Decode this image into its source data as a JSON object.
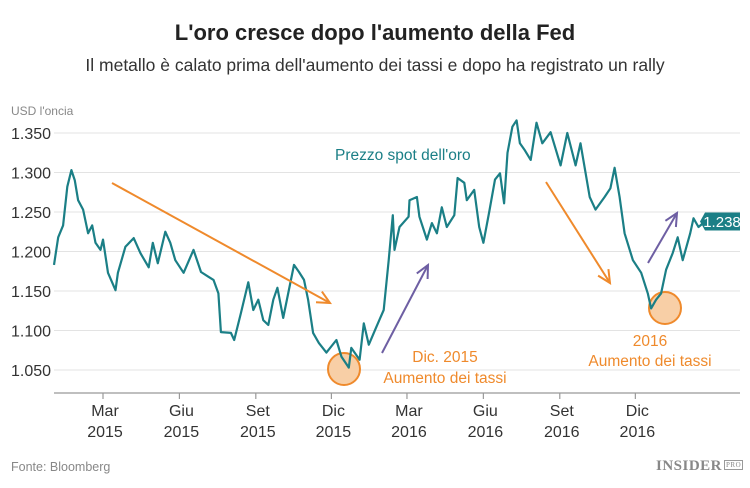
{
  "header": {
    "title": "L'oro cresce dopo l'aumento della Fed",
    "subtitle": "Il metallo è calato prima dell'aumento dei tassi e dopo ha registrato un rally"
  },
  "footer": {
    "source": "Fonte: Bloomberg",
    "logo": "INSIDER",
    "logo_suffix": "PRO"
  },
  "colors": {
    "line": "#1b7f86",
    "orange": "#ef8a2c",
    "purple": "#6e5fa3",
    "circle_fill": "#f8cfa6",
    "grid": "#e3e3e3"
  },
  "chart_data": {
    "type": "line",
    "title": "L'oro cresce dopo l'aumento della Fed",
    "ylabel": "USD l'oncia",
    "ylim": [
      1.021,
      1.365
    ],
    "xlim": [
      "2015-01-01",
      "2017-04-06"
    ],
    "grid": true,
    "yticks": [
      1.35,
      1.3,
      1.25,
      1.2,
      1.15,
      1.1,
      1.05
    ],
    "ytick_labels": [
      "1.350",
      "1.300",
      "1.250",
      "1.200",
      "1.150",
      "1.100",
      "1.050"
    ],
    "xticks": [
      {
        "date": "2015-03-01",
        "label": [
          "Mar",
          "2015"
        ]
      },
      {
        "date": "2015-06-01",
        "label": [
          "Giu",
          "2015"
        ]
      },
      {
        "date": "2015-09-01",
        "label": [
          "Set",
          "2015"
        ]
      },
      {
        "date": "2015-12-01",
        "label": [
          "Dic",
          "2015"
        ]
      },
      {
        "date": "2016-03-01",
        "label": [
          "Mar",
          "2016"
        ]
      },
      {
        "date": "2016-06-01",
        "label": [
          "Giu",
          "2016"
        ]
      },
      {
        "date": "2016-09-01",
        "label": [
          "Set",
          "2016"
        ]
      },
      {
        "date": "2016-12-01",
        "label": [
          "Dic",
          "2016"
        ]
      }
    ],
    "series": [
      {
        "name": "Prezzo spot dell'oro",
        "last_label": "1.238",
        "points": [
          [
            "2015-01-01",
            1.183
          ],
          [
            "2015-01-06",
            1.218
          ],
          [
            "2015-01-12",
            1.233
          ],
          [
            "2015-01-17",
            1.282
          ],
          [
            "2015-01-22",
            1.303
          ],
          [
            "2015-01-26",
            1.29
          ],
          [
            "2015-01-30",
            1.265
          ],
          [
            "2015-02-05",
            1.253
          ],
          [
            "2015-02-11",
            1.223
          ],
          [
            "2015-02-16",
            1.233
          ],
          [
            "2015-02-20",
            1.211
          ],
          [
            "2015-02-26",
            1.202
          ],
          [
            "2015-03-01",
            1.215
          ],
          [
            "2015-03-07",
            1.173
          ],
          [
            "2015-03-16",
            1.151
          ],
          [
            "2015-03-19",
            1.173
          ],
          [
            "2015-03-28",
            1.206
          ],
          [
            "2015-04-07",
            1.217
          ],
          [
            "2015-04-15",
            1.198
          ],
          [
            "2015-04-25",
            1.18
          ],
          [
            "2015-04-30",
            1.211
          ],
          [
            "2015-05-06",
            1.185
          ],
          [
            "2015-05-15",
            1.225
          ],
          [
            "2015-05-21",
            1.211
          ],
          [
            "2015-05-27",
            1.189
          ],
          [
            "2015-06-06",
            1.173
          ],
          [
            "2015-06-18",
            1.202
          ],
          [
            "2015-06-27",
            1.174
          ],
          [
            "2015-07-06",
            1.168
          ],
          [
            "2015-07-12",
            1.164
          ],
          [
            "2015-07-18",
            1.147
          ],
          [
            "2015-07-21",
            1.098
          ],
          [
            "2015-08-02",
            1.097
          ],
          [
            "2015-08-06",
            1.088
          ],
          [
            "2015-08-14",
            1.122
          ],
          [
            "2015-08-23",
            1.161
          ],
          [
            "2015-08-29",
            1.126
          ],
          [
            "2015-09-04",
            1.139
          ],
          [
            "2015-09-10",
            1.113
          ],
          [
            "2015-09-16",
            1.107
          ],
          [
            "2015-09-22",
            1.139
          ],
          [
            "2015-09-27",
            1.154
          ],
          [
            "2015-10-04",
            1.116
          ],
          [
            "2015-10-10",
            1.147
          ],
          [
            "2015-10-17",
            1.183
          ],
          [
            "2015-10-23",
            1.174
          ],
          [
            "2015-10-29",
            1.164
          ],
          [
            "2015-11-03",
            1.139
          ],
          [
            "2015-11-09",
            1.097
          ],
          [
            "2015-11-16",
            1.084
          ],
          [
            "2015-11-25",
            1.072
          ],
          [
            "2015-12-07",
            1.088
          ],
          [
            "2015-12-13",
            1.067
          ],
          [
            "2015-12-22",
            1.053
          ],
          [
            "2015-12-25",
            1.078
          ],
          [
            "2016-01-04",
            1.063
          ],
          [
            "2016-01-09",
            1.109
          ],
          [
            "2016-01-15",
            1.082
          ],
          [
            "2016-01-24",
            1.104
          ],
          [
            "2016-02-02",
            1.126
          ],
          [
            "2016-02-08",
            1.189
          ],
          [
            "2016-02-13",
            1.246
          ],
          [
            "2016-02-15",
            1.202
          ],
          [
            "2016-02-21",
            1.231
          ],
          [
            "2016-03-03",
            1.244
          ],
          [
            "2016-03-04",
            1.265
          ],
          [
            "2016-03-13",
            1.269
          ],
          [
            "2016-03-16",
            1.244
          ],
          [
            "2016-03-25",
            1.215
          ],
          [
            "2016-03-31",
            1.236
          ],
          [
            "2016-04-06",
            1.223
          ],
          [
            "2016-04-12",
            1.256
          ],
          [
            "2016-04-18",
            1.231
          ],
          [
            "2016-04-27",
            1.246
          ],
          [
            "2016-05-01",
            1.293
          ],
          [
            "2016-05-09",
            1.287
          ],
          [
            "2016-05-12",
            1.265
          ],
          [
            "2016-05-21",
            1.278
          ],
          [
            "2016-05-27",
            1.231
          ],
          [
            "2016-06-01",
            1.211
          ],
          [
            "2016-06-08",
            1.25
          ],
          [
            "2016-06-15",
            1.291
          ],
          [
            "2016-06-21",
            1.299
          ],
          [
            "2016-06-26",
            1.261
          ],
          [
            "2016-06-30",
            1.325
          ],
          [
            "2016-07-06",
            1.358
          ],
          [
            "2016-07-11",
            1.366
          ],
          [
            "2016-07-15",
            1.337
          ],
          [
            "2016-07-21",
            1.328
          ],
          [
            "2016-07-28",
            1.316
          ],
          [
            "2016-08-04",
            1.363
          ],
          [
            "2016-08-11",
            1.337
          ],
          [
            "2016-08-21",
            1.351
          ],
          [
            "2016-09-02",
            1.309
          ],
          [
            "2016-09-10",
            1.35
          ],
          [
            "2016-09-20",
            1.309
          ],
          [
            "2016-09-26",
            1.337
          ],
          [
            "2016-10-07",
            1.269
          ],
          [
            "2016-10-14",
            1.253
          ],
          [
            "2016-10-25",
            1.269
          ],
          [
            "2016-11-01",
            1.28
          ],
          [
            "2016-11-06",
            1.306
          ],
          [
            "2016-11-12",
            1.269
          ],
          [
            "2016-11-18",
            1.223
          ],
          [
            "2016-11-28",
            1.189
          ],
          [
            "2016-12-08",
            1.173
          ],
          [
            "2016-12-16",
            1.147
          ],
          [
            "2016-12-20",
            1.128
          ],
          [
            "2016-12-26",
            1.139
          ],
          [
            "2017-01-01",
            1.147
          ],
          [
            "2017-01-07",
            1.177
          ],
          [
            "2017-01-15",
            1.198
          ],
          [
            "2017-01-21",
            1.218
          ],
          [
            "2017-01-27",
            1.189
          ],
          [
            "2017-02-05",
            1.223
          ],
          [
            "2017-02-09",
            1.242
          ],
          [
            "2017-02-15",
            1.231
          ],
          [
            "2017-02-23",
            1.238
          ]
        ]
      }
    ],
    "annotations": [
      {
        "text": [
          "Dic. 2015",
          "Aumento dei tassi"
        ],
        "date": "2015-12-16"
      },
      {
        "text": [
          "2016",
          "Aumento dei tassi"
        ],
        "date": "2016-12-14"
      }
    ]
  }
}
